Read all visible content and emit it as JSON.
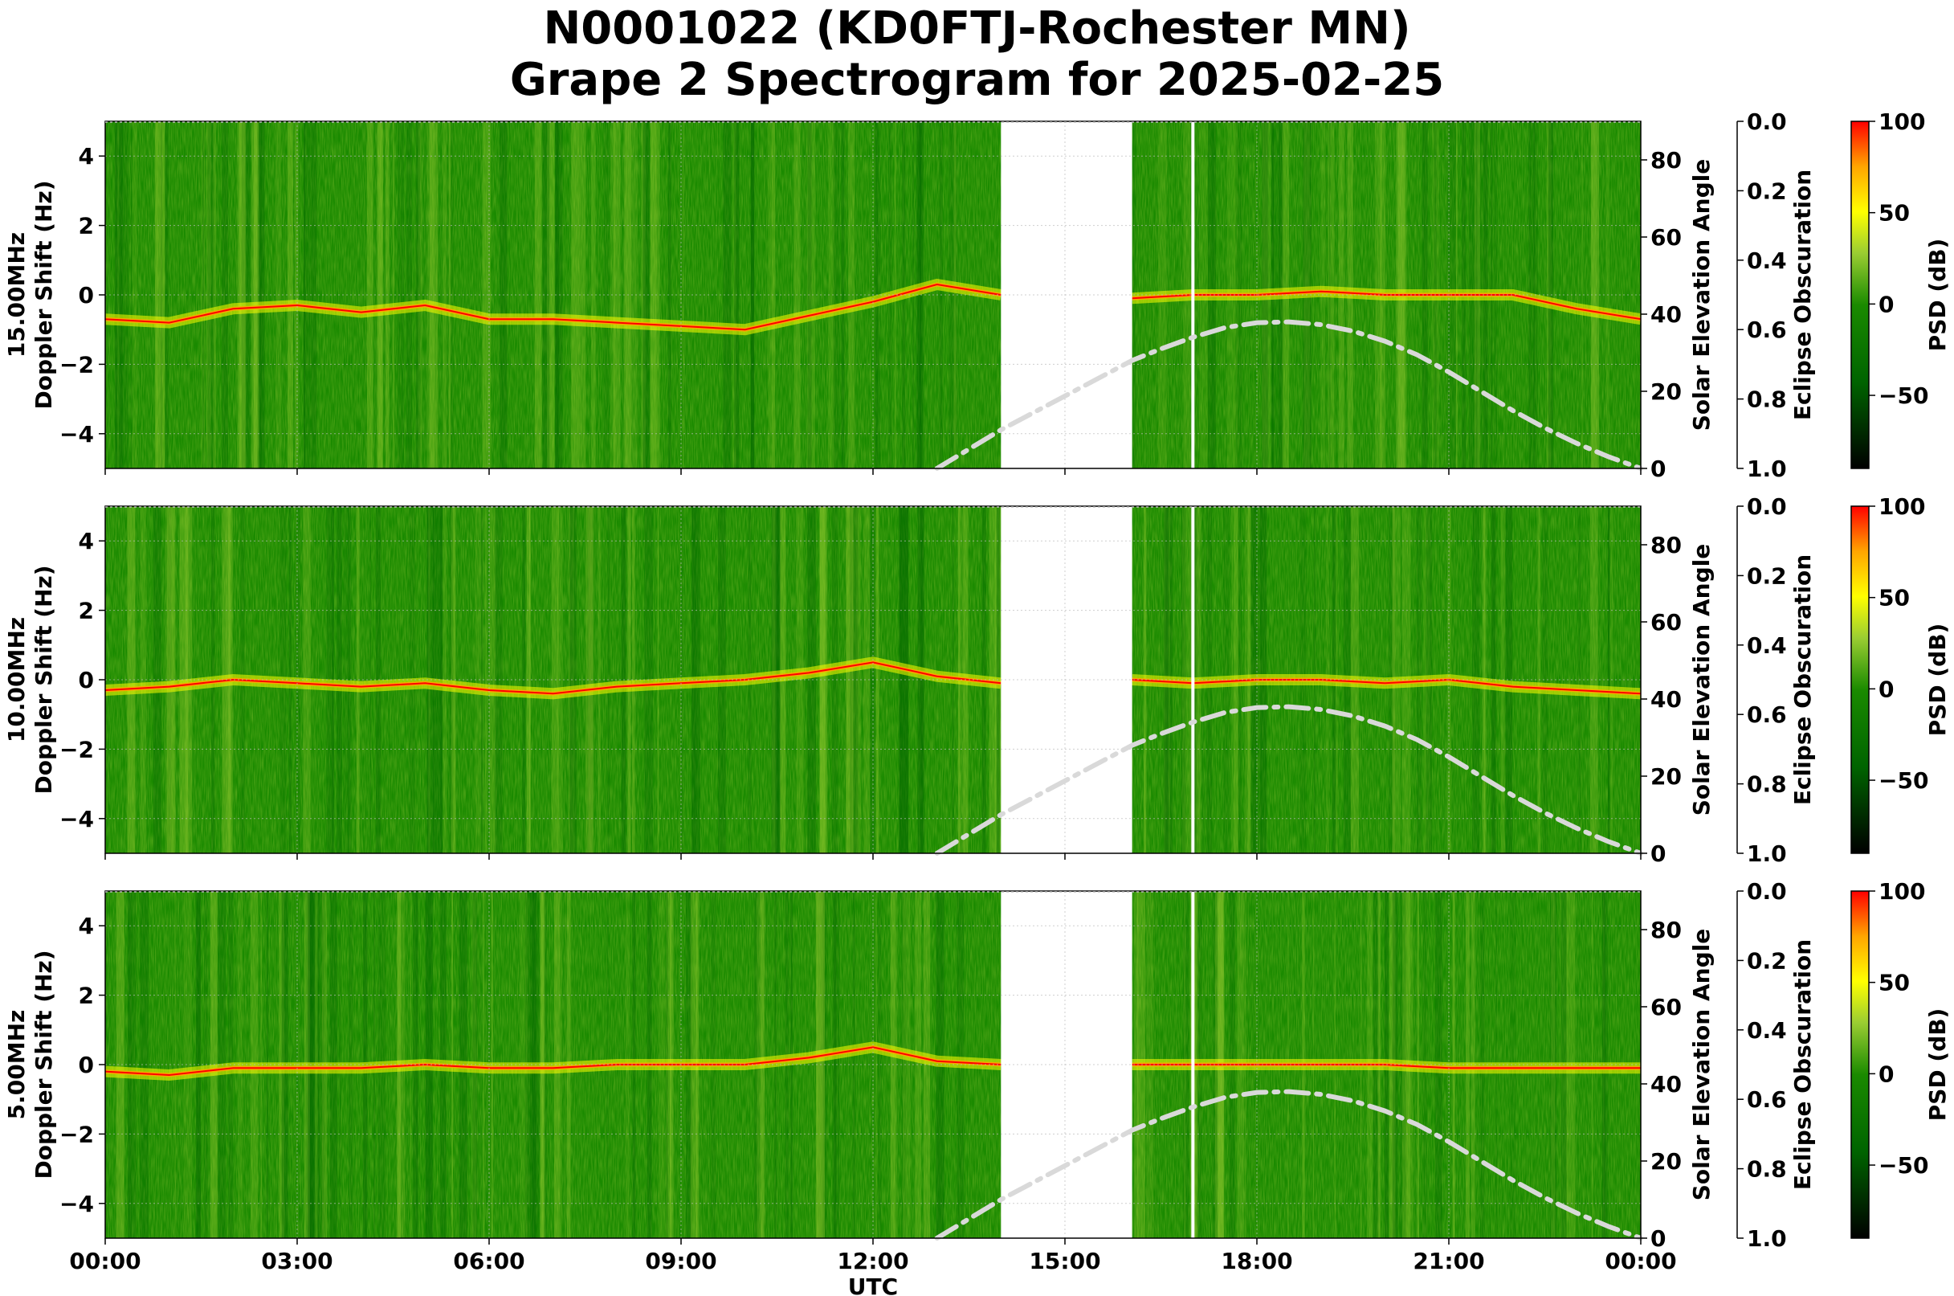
{
  "header": {
    "title_line1": "N0001022 (KD0FTJ-Rochester MN)",
    "title_line2": "Grape 2 Spectrogram for 2025-02-25"
  },
  "colors": {
    "colormap": [
      "#000000",
      "#006400",
      "#1a8a00",
      "#9acd32",
      "#ffff00",
      "#ffa500",
      "#ff0000"
    ],
    "elevation_curve": "#d9d9d9",
    "gap": "#ffffff"
  },
  "chart_data": [
    {
      "type": "heatmap",
      "panel": "15.00MHz",
      "ylabel_line1": "15.00MHz",
      "ylabel_line2": "Doppler Shift (Hz)",
      "ylim": [
        -5,
        5
      ],
      "yticks": [
        "4",
        "2",
        "0",
        "−2",
        "−4"
      ],
      "ytick_values": [
        4,
        2,
        0,
        -2,
        -4
      ],
      "y2label": "Solar Elevation Angle",
      "y2lim": [
        0,
        90
      ],
      "y2ticks": [
        "80",
        "60",
        "40",
        "20",
        "0"
      ],
      "y2tick_values": [
        80,
        60,
        40,
        20,
        0
      ],
      "y3label": "Eclipse Obscuration",
      "y3ticks": [
        "0.0",
        "0.2",
        "0.4",
        "0.6",
        "0.8",
        "1.0"
      ],
      "colorbar_label": "PSD (dB)",
      "colorbar_range": [
        -90,
        100
      ],
      "colorbar_ticks": [
        "100",
        "50",
        "0",
        "−50"
      ],
      "colorbar_tick_values": [
        100,
        50,
        0,
        -50
      ],
      "data_gap_hours": [
        14.0,
        16.05
      ],
      "vertical_line_hours": 17.0,
      "carrier_trace": {
        "hours": [
          0,
          1,
          2,
          3,
          4,
          5,
          6,
          7,
          8,
          9,
          10,
          11,
          12,
          13,
          14,
          16.05,
          17,
          18,
          19,
          20,
          21,
          22,
          23,
          24
        ],
        "doppler_hz": [
          -0.7,
          -0.8,
          -0.4,
          -0.3,
          -0.5,
          -0.3,
          -0.7,
          -0.7,
          -0.8,
          -0.9,
          -1.0,
          -0.6,
          -0.2,
          0.3,
          0.0,
          -0.1,
          0.0,
          0.0,
          0.1,
          0.0,
          0.0,
          0.0,
          -0.4,
          -0.7
        ]
      },
      "solar_elevation": {
        "hours": [
          13.0,
          13.5,
          14.0,
          16.05,
          16.5,
          17.0,
          17.5,
          18.0,
          18.5,
          19.0,
          19.5,
          20.0,
          20.5,
          21.0,
          21.5,
          22.0,
          22.5,
          23.0,
          23.5,
          24.0
        ],
        "degrees": [
          0,
          5,
          10,
          28,
          31,
          34,
          36.5,
          37.8,
          38.0,
          37.3,
          35.6,
          33.0,
          29.5,
          25.0,
          20.0,
          15.0,
          10.5,
          6.5,
          3.0,
          0
        ]
      }
    },
    {
      "type": "heatmap",
      "panel": "10.00MHz",
      "ylabel_line1": "10.00MHz",
      "ylabel_line2": "Doppler Shift (Hz)",
      "ylim": [
        -5,
        5
      ],
      "yticks": [
        "4",
        "2",
        "0",
        "−2",
        "−4"
      ],
      "ytick_values": [
        4,
        2,
        0,
        -2,
        -4
      ],
      "y2label": "Solar Elevation Angle",
      "y2lim": [
        0,
        90
      ],
      "y2ticks": [
        "80",
        "60",
        "40",
        "20",
        "0"
      ],
      "y2tick_values": [
        80,
        60,
        40,
        20,
        0
      ],
      "y3label": "Eclipse Obscuration",
      "y3ticks": [
        "0.0",
        "0.2",
        "0.4",
        "0.6",
        "0.8",
        "1.0"
      ],
      "colorbar_label": "PSD (dB)",
      "colorbar_range": [
        -90,
        100
      ],
      "colorbar_ticks": [
        "100",
        "50",
        "0",
        "−50"
      ],
      "colorbar_tick_values": [
        100,
        50,
        0,
        -50
      ],
      "data_gap_hours": [
        14.0,
        16.05
      ],
      "vertical_line_hours": 17.0,
      "carrier_trace": {
        "hours": [
          0,
          1,
          2,
          3,
          4,
          5,
          6,
          7,
          8,
          9,
          10,
          11,
          12,
          13,
          14,
          16.05,
          17,
          18,
          19,
          20,
          21,
          22,
          23,
          24
        ],
        "doppler_hz": [
          -0.3,
          -0.2,
          0.0,
          -0.1,
          -0.2,
          -0.1,
          -0.3,
          -0.4,
          -0.2,
          -0.1,
          0.0,
          0.2,
          0.5,
          0.1,
          -0.1,
          0.0,
          -0.1,
          0.0,
          0.0,
          -0.1,
          0.0,
          -0.2,
          -0.3,
          -0.4
        ]
      },
      "solar_elevation": {
        "hours": [
          13.0,
          13.5,
          14.0,
          16.05,
          16.5,
          17.0,
          17.5,
          18.0,
          18.5,
          19.0,
          19.5,
          20.0,
          20.5,
          21.0,
          21.5,
          22.0,
          22.5,
          23.0,
          23.5,
          24.0
        ],
        "degrees": [
          0,
          5,
          10,
          28,
          31,
          34,
          36.5,
          37.8,
          38.0,
          37.3,
          35.6,
          33.0,
          29.5,
          25.0,
          20.0,
          15.0,
          10.5,
          6.5,
          3.0,
          0
        ]
      }
    },
    {
      "type": "heatmap",
      "panel": "5.00MHz",
      "ylabel_line1": "5.00MHz",
      "ylabel_line2": "Doppler Shift (Hz)",
      "ylim": [
        -5,
        5
      ],
      "yticks": [
        "4",
        "2",
        "0",
        "−2",
        "−4"
      ],
      "ytick_values": [
        4,
        2,
        0,
        -2,
        -4
      ],
      "y2label": "Solar Elevation Angle",
      "y2lim": [
        0,
        90
      ],
      "y2ticks": [
        "80",
        "60",
        "40",
        "20",
        "0"
      ],
      "y2tick_values": [
        80,
        60,
        40,
        20,
        0
      ],
      "y3label": "Eclipse Obscuration",
      "y3ticks": [
        "0.0",
        "0.2",
        "0.4",
        "0.6",
        "0.8",
        "1.0"
      ],
      "colorbar_label": "PSD (dB)",
      "colorbar_range": [
        -90,
        100
      ],
      "colorbar_ticks": [
        "100",
        "50",
        "0",
        "−50"
      ],
      "colorbar_tick_values": [
        100,
        50,
        0,
        -50
      ],
      "xlabel": "UTC",
      "xticks": [
        "00:00",
        "03:00",
        "06:00",
        "09:00",
        "12:00",
        "15:00",
        "18:00",
        "21:00",
        "00:00"
      ],
      "xtick_hours": [
        0,
        3,
        6,
        9,
        12,
        15,
        18,
        21,
        24
      ],
      "data_gap_hours": [
        14.0,
        16.05
      ],
      "vertical_line_hours": 17.0,
      "carrier_trace": {
        "hours": [
          0,
          1,
          2,
          3,
          4,
          5,
          6,
          7,
          8,
          9,
          10,
          11,
          12,
          13,
          14,
          16.05,
          17,
          18,
          19,
          20,
          21,
          22,
          23,
          24
        ],
        "doppler_hz": [
          -0.2,
          -0.3,
          -0.1,
          -0.1,
          -0.1,
          0.0,
          -0.1,
          -0.1,
          0.0,
          0.0,
          0.0,
          0.2,
          0.5,
          0.1,
          0.0,
          0.0,
          0.0,
          0.0,
          0.0,
          0.0,
          -0.1,
          -0.1,
          -0.1,
          -0.1
        ]
      },
      "solar_elevation": {
        "hours": [
          13.0,
          13.5,
          14.0,
          16.05,
          16.5,
          17.0,
          17.5,
          18.0,
          18.5,
          19.0,
          19.5,
          20.0,
          20.5,
          21.0,
          21.5,
          22.0,
          22.5,
          23.0,
          23.5,
          24.0
        ],
        "degrees": [
          0,
          5,
          10,
          28,
          31,
          34,
          36.5,
          37.8,
          38.0,
          37.3,
          35.6,
          33.0,
          29.5,
          25.0,
          20.0,
          15.0,
          10.5,
          6.5,
          3.0,
          0
        ]
      }
    }
  ]
}
